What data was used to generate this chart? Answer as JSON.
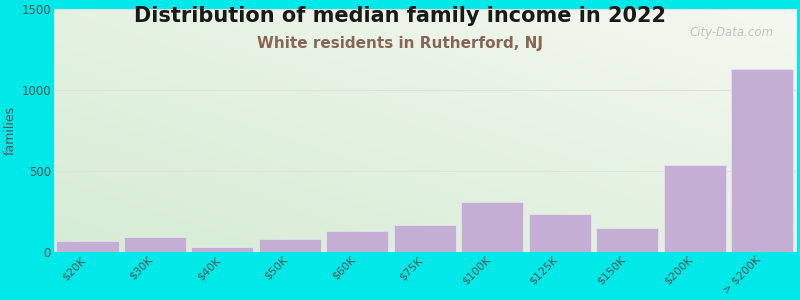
{
  "title": "Distribution of median family income in 2022",
  "subtitle": "White residents in Rutherford, NJ",
  "categories": [
    "$20K",
    "$30K",
    "$40K",
    "$50K",
    "$60K",
    "$75K",
    "$100K",
    "$125K",
    "$150K",
    "$200K",
    "> $200K"
  ],
  "values": [
    70,
    95,
    30,
    80,
    130,
    165,
    310,
    235,
    145,
    540,
    1130
  ],
  "bar_color": "#c4aed4",
  "bar_edge_color": "#e8e0f0",
  "ylabel": "families",
  "ylim": [
    0,
    1500
  ],
  "yticks": [
    0,
    500,
    1000,
    1500
  ],
  "background_color": "#00e8e8",
  "title_fontsize": 15,
  "subtitle_fontsize": 11,
  "subtitle_color": "#886655",
  "watermark": "City-Data.com",
  "grid_color": "#e0e0e0",
  "bar_width": 0.92
}
